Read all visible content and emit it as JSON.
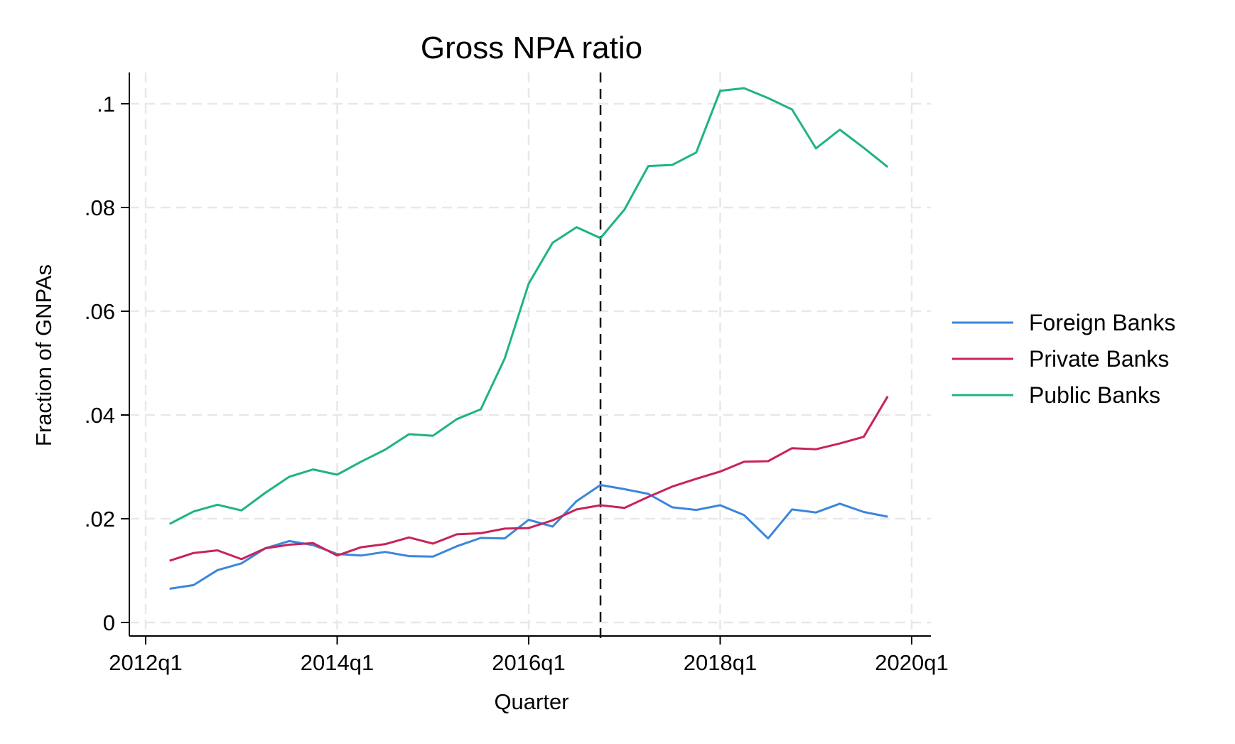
{
  "chart_data": {
    "type": "line",
    "title": "Gross NPA ratio",
    "xlabel": "Quarter",
    "ylabel": "Fraction of GNPAs",
    "x_tick_labels": [
      "2012q1",
      "2014q1",
      "2016q1",
      "2018q1",
      "2020q1"
    ],
    "y_tick_labels": [
      "0",
      ".02",
      ".04",
      ".06",
      ".08",
      ".1"
    ],
    "y_ticks": [
      0,
      0.02,
      0.04,
      0.06,
      0.08,
      0.1
    ],
    "xlim": [
      "2012q1",
      "2020q1"
    ],
    "ylim": [
      0,
      0.106
    ],
    "grid": true,
    "legend_position": "right",
    "reference_line": {
      "x": "2016q4",
      "style": "dashed"
    },
    "x": [
      "2012q2",
      "2012q3",
      "2012q4",
      "2013q1",
      "2013q2",
      "2013q3",
      "2013q4",
      "2014q1",
      "2014q2",
      "2014q3",
      "2014q4",
      "2015q1",
      "2015q2",
      "2015q3",
      "2015q4",
      "2016q1",
      "2016q2",
      "2016q3",
      "2016q4",
      "2017q1",
      "2017q2",
      "2017q3",
      "2017q4",
      "2018q1",
      "2018q2",
      "2018q3",
      "2018q4",
      "2019q1",
      "2019q2",
      "2019q3",
      "2019q4"
    ],
    "series": [
      {
        "name": "Foreign Banks",
        "color": "#3b86db",
        "values": [
          0.0065,
          0.0072,
          0.0101,
          0.0114,
          0.0143,
          0.0157,
          0.0149,
          0.0132,
          0.0129,
          0.0136,
          0.0128,
          0.0127,
          0.0147,
          0.0163,
          0.0162,
          0.0198,
          0.0185,
          0.0234,
          0.0265,
          0.0257,
          0.0248,
          0.0222,
          0.0217,
          0.0226,
          0.0207,
          0.0162,
          0.0218,
          0.0212,
          0.0229,
          0.0213,
          0.0204
        ]
      },
      {
        "name": "Private Banks",
        "color": "#c8235a",
        "values": [
          0.0119,
          0.0134,
          0.0139,
          0.0122,
          0.0143,
          0.015,
          0.0153,
          0.0129,
          0.0145,
          0.0151,
          0.0164,
          0.0152,
          0.017,
          0.0172,
          0.0181,
          0.0182,
          0.0197,
          0.0218,
          0.0226,
          0.0221,
          0.0242,
          0.0262,
          0.0277,
          0.0291,
          0.031,
          0.0311,
          0.0336,
          0.0334,
          0.0345,
          0.0358,
          0.0436
        ]
      },
      {
        "name": "Public Banks",
        "color": "#1fb384",
        "values": [
          0.019,
          0.0214,
          0.0227,
          0.0216,
          0.025,
          0.0281,
          0.0295,
          0.0285,
          0.031,
          0.0333,
          0.0363,
          0.036,
          0.0392,
          0.0411,
          0.0509,
          0.0653,
          0.0732,
          0.0762,
          0.0741,
          0.0796,
          0.088,
          0.0882,
          0.0906,
          0.1025,
          0.103,
          0.1011,
          0.0989,
          0.0914,
          0.095,
          0.0915,
          0.0878
        ]
      }
    ]
  }
}
